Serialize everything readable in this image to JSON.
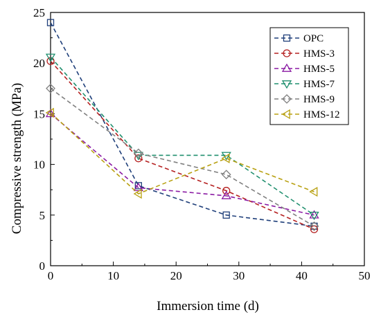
{
  "chart_data": {
    "type": "line",
    "title": "",
    "xlabel": "Immersion time (d)",
    "ylabel": "Compressive strength (MPa)",
    "xlim": [
      0,
      50
    ],
    "ylim": [
      0,
      25
    ],
    "xticks": [
      0,
      10,
      20,
      30,
      40,
      50
    ],
    "yticks": [
      0,
      5,
      10,
      15,
      20,
      25
    ],
    "x": [
      0,
      14,
      28,
      42
    ],
    "legend_position": "top-right",
    "grid": false,
    "series": [
      {
        "name": "OPC",
        "marker": "square",
        "color": "#1f3f7a",
        "values": [
          24.0,
          7.9,
          5.0,
          3.9
        ]
      },
      {
        "name": "HMS-3",
        "marker": "circle",
        "color": "#b52020",
        "values": [
          20.2,
          10.6,
          7.4,
          3.6
        ]
      },
      {
        "name": "HMS-5",
        "marker": "triangle-up",
        "color": "#8a1aa3",
        "values": [
          15.0,
          7.7,
          6.9,
          5.0
        ]
      },
      {
        "name": "HMS-7",
        "marker": "triangle-down",
        "color": "#1f8f6e",
        "values": [
          20.6,
          10.9,
          10.9,
          5.0
        ]
      },
      {
        "name": "HMS-9",
        "marker": "diamond",
        "color": "#808080",
        "values": [
          17.5,
          11.1,
          9.0,
          3.9
        ]
      },
      {
        "name": "HMS-12",
        "marker": "triangle-left",
        "color": "#b8a010",
        "values": [
          15.1,
          7.1,
          10.6,
          7.3
        ]
      }
    ]
  }
}
